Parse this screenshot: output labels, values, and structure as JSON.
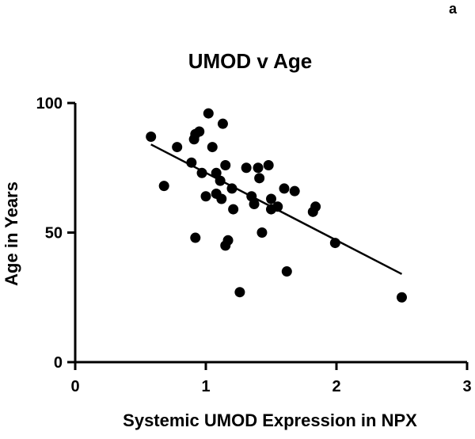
{
  "panel_label": "a",
  "chart_data": {
    "type": "scatter",
    "title": "UMOD v Age",
    "xlabel": "Systemic UMOD Expression in NPX",
    "ylabel": "Age in Years",
    "xlim": [
      0,
      3
    ],
    "ylim": [
      0,
      100
    ],
    "x_ticks": [
      0,
      1,
      2,
      3
    ],
    "y_ticks": [
      0,
      50,
      100
    ],
    "x_tick_labels": [
      "0",
      "1",
      "2",
      "3"
    ],
    "y_tick_labels": [
      "0",
      "50",
      "100"
    ],
    "grid": false,
    "legend": "none",
    "marker_color": "#000000",
    "points": [
      {
        "x": 0.58,
        "y": 87
      },
      {
        "x": 0.68,
        "y": 68
      },
      {
        "x": 0.78,
        "y": 83
      },
      {
        "x": 0.89,
        "y": 77
      },
      {
        "x": 0.91,
        "y": 86
      },
      {
        "x": 0.92,
        "y": 88
      },
      {
        "x": 0.95,
        "y": 89
      },
      {
        "x": 0.92,
        "y": 48
      },
      {
        "x": 0.97,
        "y": 73
      },
      {
        "x": 1.0,
        "y": 64
      },
      {
        "x": 1.02,
        "y": 96
      },
      {
        "x": 1.05,
        "y": 83
      },
      {
        "x": 1.08,
        "y": 73
      },
      {
        "x": 1.08,
        "y": 65
      },
      {
        "x": 1.11,
        "y": 70
      },
      {
        "x": 1.12,
        "y": 63
      },
      {
        "x": 1.13,
        "y": 92
      },
      {
        "x": 1.15,
        "y": 76
      },
      {
        "x": 1.15,
        "y": 45
      },
      {
        "x": 1.17,
        "y": 47
      },
      {
        "x": 1.2,
        "y": 67
      },
      {
        "x": 1.21,
        "y": 59
      },
      {
        "x": 1.26,
        "y": 27
      },
      {
        "x": 1.31,
        "y": 75
      },
      {
        "x": 1.35,
        "y": 64
      },
      {
        "x": 1.37,
        "y": 61
      },
      {
        "x": 1.4,
        "y": 75
      },
      {
        "x": 1.41,
        "y": 71
      },
      {
        "x": 1.43,
        "y": 50
      },
      {
        "x": 1.48,
        "y": 76
      },
      {
        "x": 1.5,
        "y": 63
      },
      {
        "x": 1.5,
        "y": 59
      },
      {
        "x": 1.55,
        "y": 60
      },
      {
        "x": 1.6,
        "y": 67
      },
      {
        "x": 1.62,
        "y": 35
      },
      {
        "x": 1.68,
        "y": 66
      },
      {
        "x": 1.82,
        "y": 58
      },
      {
        "x": 1.84,
        "y": 60
      },
      {
        "x": 1.99,
        "y": 46
      },
      {
        "x": 2.5,
        "y": 25
      }
    ],
    "trendline": {
      "x": [
        0.58,
        2.5
      ],
      "y": [
        84,
        34
      ]
    }
  }
}
